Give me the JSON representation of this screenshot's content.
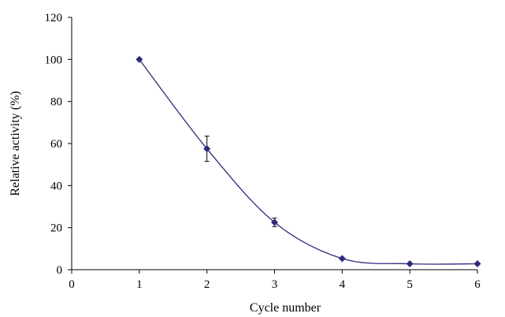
{
  "chart_data": {
    "type": "scatter",
    "xlabel": "Cycle number",
    "ylabel": "Relative activity (%)",
    "xlim": [
      0,
      6
    ],
    "ylim": [
      0,
      120
    ],
    "x_ticks": [
      "0",
      "1",
      "2",
      "3",
      "4",
      "5",
      "6"
    ],
    "y_ticks": [
      "0",
      "20",
      "40",
      "60",
      "80",
      "100",
      "120"
    ],
    "grid": false,
    "legend": "none",
    "marker": "diamond",
    "trendline": "smooth",
    "series": [
      {
        "color": "#2b2a7c",
        "x": [
          1,
          2,
          3,
          4,
          5,
          6
        ],
        "y": [
          100,
          57.5,
          22.5,
          5.3,
          2.8,
          2.8
        ],
        "error": [
          0,
          6,
          2,
          0,
          0,
          0
        ]
      }
    ]
  }
}
